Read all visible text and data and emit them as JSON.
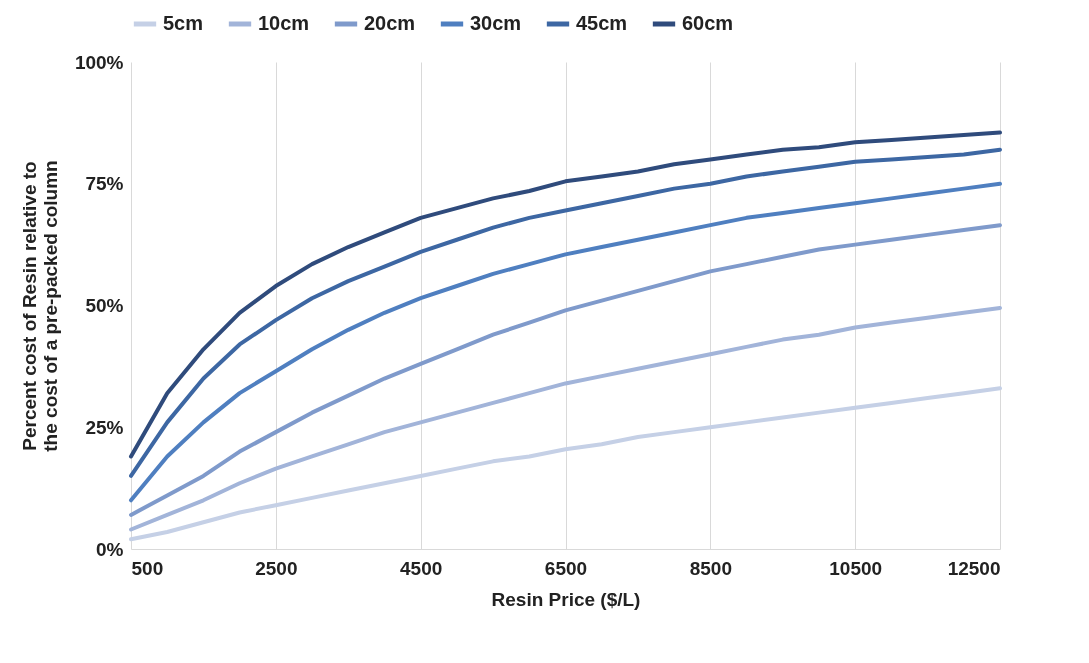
{
  "chart_data": {
    "type": "line",
    "xlabel": "Resin Price ($/L)",
    "ylabel": "Percent cost of Resin relative to the cost of a pre-packed column",
    "x": [
      500,
      1000,
      1500,
      2000,
      2500,
      3000,
      3500,
      4000,
      4500,
      5000,
      5500,
      6000,
      6500,
      7000,
      7500,
      8000,
      8500,
      9000,
      9500,
      10000,
      10500,
      11000,
      11500,
      12000,
      12500
    ],
    "series": [
      {
        "name": "5cm",
        "color": "#c5d0e6",
        "values": [
          2,
          3.5,
          5.5,
          7.5,
          9,
          10.5,
          12,
          13.5,
          15,
          16.5,
          18,
          19,
          20.5,
          21.5,
          23,
          24,
          25,
          26,
          27,
          28,
          29,
          30,
          31,
          32,
          33
        ]
      },
      {
        "name": "10cm",
        "color": "#a2b4d9",
        "values": [
          4,
          7,
          10,
          13.5,
          16.5,
          19,
          21.5,
          24,
          26,
          28,
          30,
          32,
          34,
          35.5,
          37,
          38.5,
          40,
          41.5,
          43,
          44,
          45.5,
          46.5,
          47.5,
          48.5,
          49.5
        ]
      },
      {
        "name": "20cm",
        "color": "#7f9acb",
        "values": [
          7,
          11,
          15,
          20,
          24,
          28,
          31.5,
          35,
          38,
          41,
          44,
          46.5,
          49,
          51,
          53,
          55,
          57,
          58.5,
          60,
          61.5,
          62.5,
          63.5,
          64.5,
          65.5,
          66.5
        ]
      },
      {
        "name": "30cm",
        "color": "#4f7fc0",
        "values": [
          10,
          19,
          26,
          32,
          36.5,
          41,
          45,
          48.5,
          51.5,
          54,
          56.5,
          58.5,
          60.5,
          62,
          63.5,
          65,
          66.5,
          68,
          69,
          70,
          71,
          72,
          73,
          74,
          75
        ]
      },
      {
        "name": "45cm",
        "color": "#3d67a3",
        "values": [
          15,
          26,
          35,
          42,
          47,
          51.5,
          55,
          58,
          61,
          63.5,
          66,
          68,
          69.5,
          71,
          72.5,
          74,
          75,
          76.5,
          77.5,
          78.5,
          79.5,
          80,
          80.5,
          81,
          82
        ]
      },
      {
        "name": "60cm",
        "color": "#2f4b7c",
        "values": [
          19,
          32,
          41,
          48.5,
          54,
          58.5,
          62,
          65,
          68,
          70,
          72,
          73.5,
          75.5,
          76.5,
          77.5,
          79,
          80,
          81,
          82,
          82.5,
          83.5,
          84,
          84.5,
          85,
          85.5
        ]
      }
    ],
    "xlim": [
      500,
      12500
    ],
    "xticks": [
      500,
      2500,
      4500,
      6500,
      8500,
      10500,
      12500
    ],
    "ylim": [
      0,
      100
    ],
    "yticks": [
      {
        "value": 0,
        "label": "0%"
      },
      {
        "value": 25,
        "label": "25%"
      },
      {
        "value": 50,
        "label": "50%"
      },
      {
        "value": 75,
        "label": "75%"
      },
      {
        "value": 100,
        "label": "100%"
      }
    ],
    "grid": "x",
    "legend": "top",
    "line_style": "solid",
    "marker": "none"
  }
}
